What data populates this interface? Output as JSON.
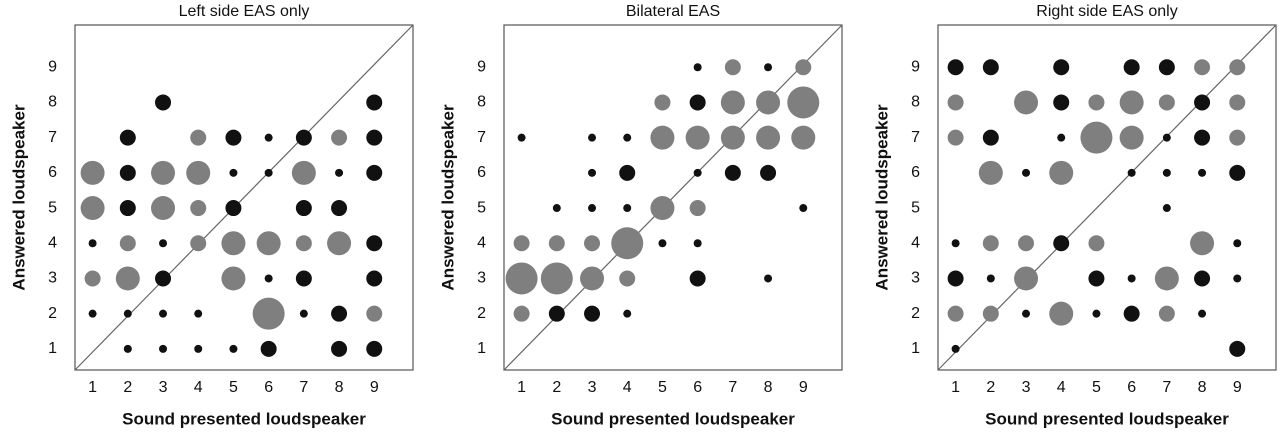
{
  "chart_data": [
    {
      "type": "scatter",
      "title": "Left side EAS only",
      "x_label": "Sound presented loudspeaker",
      "y_label": "Answered loudspeaker",
      "xlim": [
        0.5,
        10.1
      ],
      "ylim": [
        0.4,
        10.2
      ],
      "xticks": [
        1,
        2,
        3,
        4,
        5,
        6,
        7,
        8,
        9
      ],
      "yticks": [
        1,
        2,
        3,
        4,
        5,
        6,
        7,
        8,
        9
      ],
      "series": [
        {
          "color": "#7f7f7f",
          "x": [
            4,
            8,
            1,
            3,
            4,
            7,
            1,
            3,
            4,
            2,
            4,
            5,
            6,
            7,
            8,
            1,
            2,
            5,
            6,
            9
          ],
          "y": [
            7,
            7,
            6,
            6,
            6,
            6,
            5,
            5,
            5,
            4,
            4,
            4,
            4,
            4,
            4,
            3,
            3,
            3,
            2,
            2
          ],
          "sizes": [
            2,
            2,
            3,
            3,
            3,
            3,
            3,
            3,
            2,
            2,
            2,
            3,
            3,
            2,
            3,
            2,
            3,
            3,
            4,
            2
          ]
        },
        {
          "color": "#111111",
          "x": [
            3,
            9,
            2,
            5,
            6,
            7,
            9,
            2,
            5,
            6,
            8,
            9,
            2,
            5,
            7,
            8,
            1,
            3,
            9,
            3,
            6,
            7,
            9,
            1,
            2,
            3,
            4,
            7,
            8,
            2,
            3,
            4,
            5,
            6,
            8,
            9
          ],
          "y": [
            8,
            8,
            7,
            7,
            7,
            7,
            7,
            6,
            6,
            6,
            6,
            6,
            5,
            5,
            5,
            5,
            4,
            4,
            4,
            3,
            3,
            3,
            3,
            2,
            2,
            2,
            2,
            2,
            2,
            1,
            1,
            1,
            1,
            1,
            1,
            1
          ],
          "sizes": [
            2,
            2,
            2,
            2,
            1,
            2,
            2,
            2,
            1,
            1,
            1,
            2,
            2,
            2,
            2,
            2,
            1,
            1,
            2,
            2,
            1,
            2,
            2,
            1,
            1,
            1,
            1,
            1,
            2,
            1,
            1,
            1,
            1,
            2,
            2,
            2
          ]
        }
      ]
    },
    {
      "type": "scatter",
      "title": "Bilateral EAS",
      "x_label": "Sound presented loudspeaker",
      "y_label": "Answered loudspeaker",
      "xlim": [
        0.5,
        10.1
      ],
      "ylim": [
        0.4,
        10.2
      ],
      "xticks": [
        1,
        2,
        3,
        4,
        5,
        6,
        7,
        8,
        9
      ],
      "yticks": [
        1,
        2,
        3,
        4,
        5,
        6,
        7,
        8,
        9
      ],
      "series": [
        {
          "color": "#7f7f7f",
          "x": [
            7,
            9,
            5,
            7,
            8,
            9,
            5,
            6,
            7,
            8,
            9,
            5,
            6,
            1,
            2,
            3,
            4,
            1,
            2,
            3,
            4,
            1
          ],
          "y": [
            9,
            9,
            8,
            8,
            8,
            8,
            7,
            7,
            7,
            7,
            7,
            5,
            5,
            4,
            4,
            4,
            4,
            3,
            3,
            3,
            3,
            2
          ],
          "sizes": [
            2,
            2,
            2,
            3,
            3,
            4,
            3,
            3,
            3,
            3,
            3,
            3,
            2,
            2,
            2,
            2,
            4,
            4,
            4,
            3,
            2,
            2
          ]
        },
        {
          "color": "#111111",
          "x": [
            6,
            8,
            6,
            1,
            3,
            4,
            3,
            4,
            6,
            7,
            8,
            2,
            3,
            4,
            9,
            5,
            6,
            6,
            8,
            2,
            3,
            4
          ],
          "y": [
            9,
            9,
            8,
            7,
            7,
            7,
            6,
            6,
            6,
            6,
            6,
            5,
            5,
            5,
            5,
            4,
            4,
            3,
            3,
            2,
            2,
            2
          ],
          "sizes": [
            1,
            1,
            2,
            1,
            1,
            1,
            1,
            2,
            1,
            2,
            2,
            1,
            1,
            1,
            1,
            1,
            1,
            2,
            1,
            2,
            2,
            1
          ]
        }
      ]
    },
    {
      "type": "scatter",
      "title": "Right side EAS only",
      "x_label": "Sound presented loudspeaker",
      "y_label": "Answered loudspeaker",
      "xlim": [
        0.5,
        10.1
      ],
      "ylim": [
        0.4,
        10.2
      ],
      "xticks": [
        1,
        2,
        3,
        4,
        5,
        6,
        7,
        8,
        9
      ],
      "yticks": [
        1,
        2,
        3,
        4,
        5,
        6,
        7,
        8,
        9
      ],
      "series": [
        {
          "color": "#7f7f7f",
          "x": [
            8,
            9,
            1,
            3,
            5,
            6,
            7,
            9,
            1,
            5,
            6,
            9,
            2,
            4,
            2,
            3,
            5,
            8,
            3,
            7,
            1,
            2,
            4,
            7
          ],
          "y": [
            9,
            9,
            8,
            8,
            8,
            8,
            8,
            8,
            7,
            7,
            7,
            7,
            6,
            6,
            4,
            4,
            4,
            4,
            3,
            3,
            2,
            2,
            2,
            2
          ],
          "sizes": [
            2,
            2,
            2,
            3,
            2,
            3,
            2,
            2,
            2,
            4,
            3,
            2,
            3,
            3,
            2,
            2,
            2,
            3,
            3,
            3,
            2,
            2,
            3,
            2
          ]
        },
        {
          "color": "#111111",
          "x": [
            1,
            2,
            4,
            6,
            7,
            4,
            8,
            2,
            4,
            7,
            8,
            3,
            6,
            7,
            8,
            9,
            7,
            1,
            4,
            9,
            1,
            2,
            5,
            6,
            8,
            9,
            3,
            5,
            6,
            8,
            1,
            9
          ],
          "y": [
            9,
            9,
            9,
            9,
            9,
            8,
            8,
            7,
            7,
            7,
            7,
            6,
            6,
            6,
            6,
            6,
            5,
            4,
            4,
            4,
            3,
            3,
            3,
            3,
            3,
            3,
            2,
            2,
            2,
            2,
            1,
            1
          ],
          "sizes": [
            2,
            2,
            2,
            2,
            2,
            2,
            2,
            2,
            1,
            1,
            2,
            1,
            1,
            1,
            1,
            2,
            1,
            1,
            2,
            1,
            2,
            1,
            2,
            1,
            2,
            1,
            1,
            1,
            2,
            1,
            1,
            2
          ]
        }
      ]
    }
  ]
}
